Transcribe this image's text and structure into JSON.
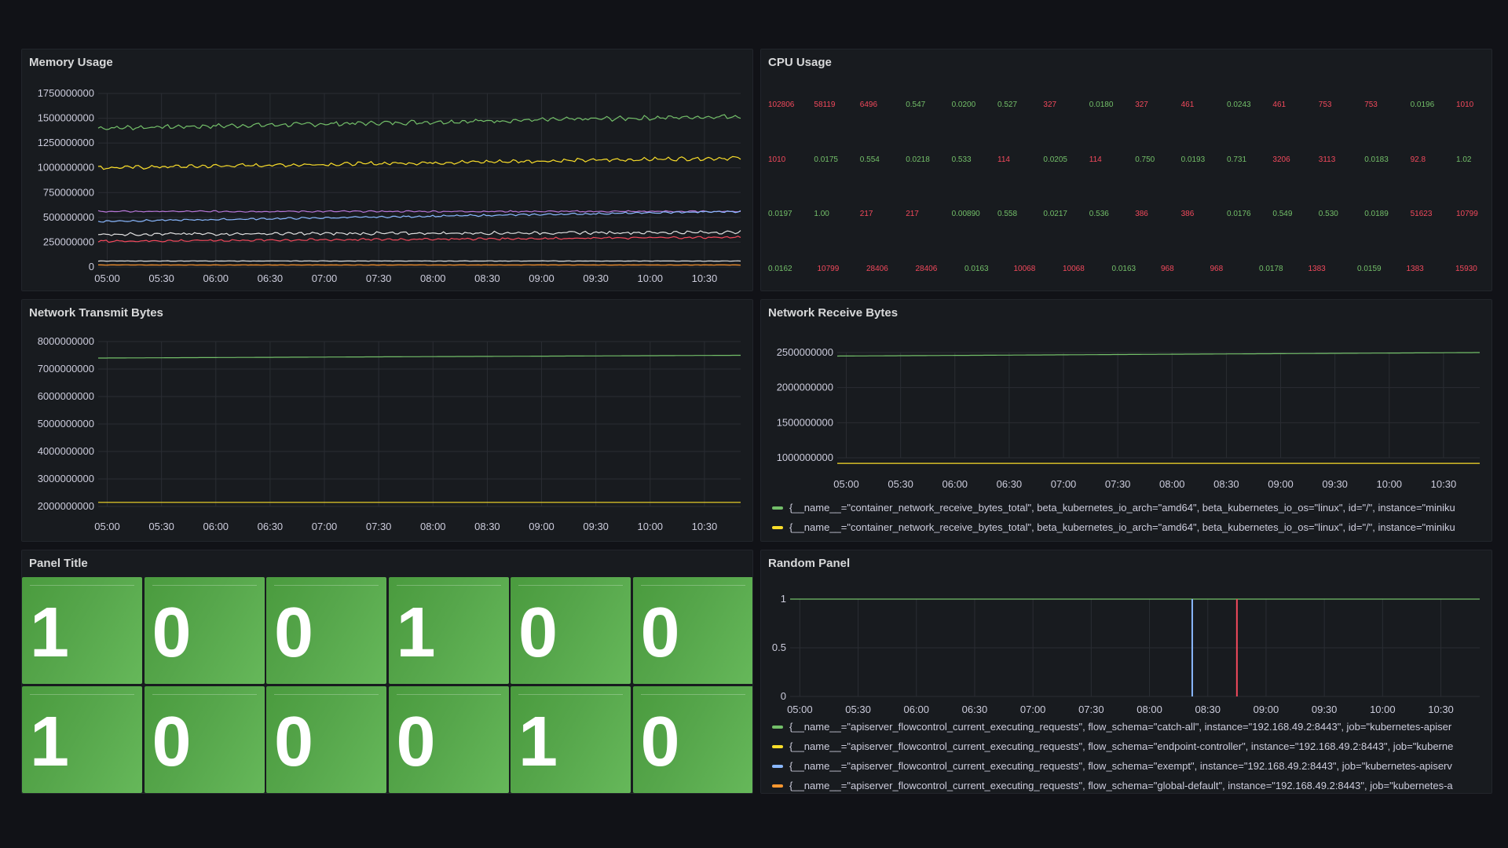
{
  "panels": {
    "memory": {
      "title": "Memory Usage"
    },
    "cpu": {
      "title": "CPU Usage"
    },
    "net_tx": {
      "title": "Network Transmit Bytes"
    },
    "net_rx": {
      "title": "Network Receive Bytes"
    },
    "stat": {
      "title": "Panel Title"
    },
    "random": {
      "title": "Random Panel"
    }
  },
  "colors": {
    "green": "#73bf69",
    "yellow": "#fade2a",
    "blue": "#8ab8ff",
    "orange": "#ff9830",
    "red": "#f2495c",
    "purple": "#b877d9",
    "white": "#e0e0e0",
    "stat_bg": "#56a64b"
  },
  "x_ticks": [
    "05:00",
    "05:30",
    "06:00",
    "06:30",
    "07:00",
    "07:30",
    "08:00",
    "08:30",
    "09:00",
    "09:30",
    "10:00",
    "10:30"
  ],
  "chart_data": [
    {
      "panel": "Memory Usage",
      "type": "line",
      "x_range": [
        "04:55",
        "10:50"
      ],
      "ylim": [
        0,
        1750000000
      ],
      "yticks": [
        "1750000000",
        "1500000000",
        "1250000000",
        "1000000000",
        "750000000",
        "500000000",
        "250000000",
        "0"
      ],
      "series": [
        {
          "color": "green",
          "start": 1400000000,
          "end": 1520000000,
          "noise": 30000000
        },
        {
          "color": "yellow",
          "start": 1000000000,
          "end": 1100000000,
          "noise": 25000000
        },
        {
          "color": "purple",
          "start": 560000000,
          "end": 560000000,
          "noise": 10000000
        },
        {
          "color": "blue",
          "start": 460000000,
          "end": 560000000,
          "noise": 12000000
        },
        {
          "color": "white",
          "start": 330000000,
          "end": 350000000,
          "noise": 20000000
        },
        {
          "color": "red",
          "start": 260000000,
          "end": 300000000,
          "noise": 15000000
        },
        {
          "color": "white",
          "start": 60000000,
          "end": 60000000,
          "noise": 3000000
        },
        {
          "color": "orange",
          "start": 20000000,
          "end": 20000000,
          "noise": 2000000
        }
      ]
    },
    {
      "panel": "Network Transmit Bytes",
      "type": "line",
      "x_range": [
        "04:55",
        "10:50"
      ],
      "ylim": [
        2000000000,
        8000000000
      ],
      "yticks": [
        "8000000000",
        "7000000000",
        "6000000000",
        "5000000000",
        "4000000000",
        "3000000000",
        "2000000000"
      ],
      "series": [
        {
          "color": "green",
          "start": 7400000000,
          "end": 7500000000
        },
        {
          "color": "yellow",
          "start": 2150000000,
          "end": 2150000000
        }
      ]
    },
    {
      "panel": "Network Receive Bytes",
      "type": "line",
      "x_range": [
        "04:55",
        "10:50"
      ],
      "ylim": [
        1000000000,
        2500000000
      ],
      "yticks": [
        "2500000000",
        "2000000000",
        "1500000000",
        "1000000000"
      ],
      "series": [
        {
          "color": "green",
          "start": 2450000000,
          "end": 2500000000
        },
        {
          "color": "yellow",
          "start": 920000000,
          "end": 920000000
        }
      ]
    },
    {
      "panel": "Random Panel",
      "type": "line",
      "x_range": [
        "04:55",
        "10:50"
      ],
      "ylim": [
        0,
        1
      ],
      "yticks": [
        "1",
        "0.5",
        "0"
      ],
      "series": [
        {
          "color": "green",
          "constant": 1
        },
        {
          "color": "blue",
          "spike_at": "08:22"
        },
        {
          "color": "red",
          "spike_at": "08:45"
        }
      ]
    }
  ],
  "cpu_values": [
    [
      {
        "v": "102806",
        "c": "red"
      },
      {
        "v": "58119",
        "c": "red"
      },
      {
        "v": "6496",
        "c": "red"
      },
      {
        "v": "0.547",
        "c": "green"
      },
      {
        "v": "0.0200",
        "c": "green"
      },
      {
        "v": "0.527",
        "c": "green"
      },
      {
        "v": "327",
        "c": "red"
      },
      {
        "v": "0.0180",
        "c": "green"
      },
      {
        "v": "327",
        "c": "red"
      },
      {
        "v": "461",
        "c": "red"
      },
      {
        "v": "0.0243",
        "c": "green"
      },
      {
        "v": "461",
        "c": "red"
      },
      {
        "v": "753",
        "c": "red"
      },
      {
        "v": "753",
        "c": "red"
      },
      {
        "v": "0.0196",
        "c": "green"
      },
      {
        "v": "1010",
        "c": "red"
      }
    ],
    [
      {
        "v": "1010",
        "c": "red"
      },
      {
        "v": "0.0175",
        "c": "green"
      },
      {
        "v": "0.554",
        "c": "green"
      },
      {
        "v": "0.0218",
        "c": "green"
      },
      {
        "v": "0.533",
        "c": "green"
      },
      {
        "v": "114",
        "c": "red"
      },
      {
        "v": "0.0205",
        "c": "green"
      },
      {
        "v": "114",
        "c": "red"
      },
      {
        "v": "0.750",
        "c": "green"
      },
      {
        "v": "0.0193",
        "c": "green"
      },
      {
        "v": "0.731",
        "c": "green"
      },
      {
        "v": "3206",
        "c": "red"
      },
      {
        "v": "3113",
        "c": "red"
      },
      {
        "v": "0.0183",
        "c": "green"
      },
      {
        "v": "92.8",
        "c": "red"
      },
      {
        "v": "1.02",
        "c": "green"
      }
    ],
    [
      {
        "v": "0.0197",
        "c": "green"
      },
      {
        "v": "1.00",
        "c": "green"
      },
      {
        "v": "217",
        "c": "red"
      },
      {
        "v": "217",
        "c": "red"
      },
      {
        "v": "0.00890",
        "c": "green"
      },
      {
        "v": "0.558",
        "c": "green"
      },
      {
        "v": "0.0217",
        "c": "green"
      },
      {
        "v": "0.536",
        "c": "green"
      },
      {
        "v": "386",
        "c": "red"
      },
      {
        "v": "386",
        "c": "red"
      },
      {
        "v": "0.0176",
        "c": "green"
      },
      {
        "v": "0.549",
        "c": "green"
      },
      {
        "v": "0.530",
        "c": "green"
      },
      {
        "v": "0.0189",
        "c": "green"
      },
      {
        "v": "51623",
        "c": "red"
      },
      {
        "v": "10799",
        "c": "red"
      }
    ],
    [
      {
        "v": "0.0162",
        "c": "green"
      },
      {
        "v": "10799",
        "c": "red"
      },
      {
        "v": "28406",
        "c": "red"
      },
      {
        "v": "28406",
        "c": "red"
      },
      {
        "v": "0.0163",
        "c": "green"
      },
      {
        "v": "10068",
        "c": "red"
      },
      {
        "v": "10068",
        "c": "red"
      },
      {
        "v": "0.0163",
        "c": "green"
      },
      {
        "v": "968",
        "c": "red"
      },
      {
        "v": "968",
        "c": "red"
      },
      {
        "v": "0.0178",
        "c": "green"
      },
      {
        "v": "1383",
        "c": "red"
      },
      {
        "v": "0.0159",
        "c": "green"
      },
      {
        "v": "1383",
        "c": "red"
      },
      {
        "v": "15930",
        "c": "red"
      }
    ]
  ],
  "stat_values": [
    [
      "1",
      "0",
      "0",
      "1",
      "0",
      "0"
    ],
    [
      "1",
      "0",
      "0",
      "0",
      "1",
      "0"
    ]
  ],
  "net_rx_legend": [
    {
      "color": "green",
      "text": "{__name__=\"container_network_receive_bytes_total\", beta_kubernetes_io_arch=\"amd64\", beta_kubernetes_io_os=\"linux\", id=\"/\", instance=\"miniku"
    },
    {
      "color": "yellow",
      "text": "{__name__=\"container_network_receive_bytes_total\", beta_kubernetes_io_arch=\"amd64\", beta_kubernetes_io_os=\"linux\", id=\"/\", instance=\"miniku"
    }
  ],
  "random_legend": [
    {
      "color": "green",
      "text": "{__name__=\"apiserver_flowcontrol_current_executing_requests\", flow_schema=\"catch-all\", instance=\"192.168.49.2:8443\", job=\"kubernetes-apiser"
    },
    {
      "color": "yellow",
      "text": "{__name__=\"apiserver_flowcontrol_current_executing_requests\", flow_schema=\"endpoint-controller\", instance=\"192.168.49.2:8443\", job=\"kuberne"
    },
    {
      "color": "blue",
      "text": "{__name__=\"apiserver_flowcontrol_current_executing_requests\", flow_schema=\"exempt\", instance=\"192.168.49.2:8443\", job=\"kubernetes-apiserv"
    },
    {
      "color": "orange",
      "text": "{__name__=\"apiserver_flowcontrol_current_executing_requests\", flow_schema=\"global-default\", instance=\"192.168.49.2:8443\", job=\"kubernetes-a"
    }
  ]
}
